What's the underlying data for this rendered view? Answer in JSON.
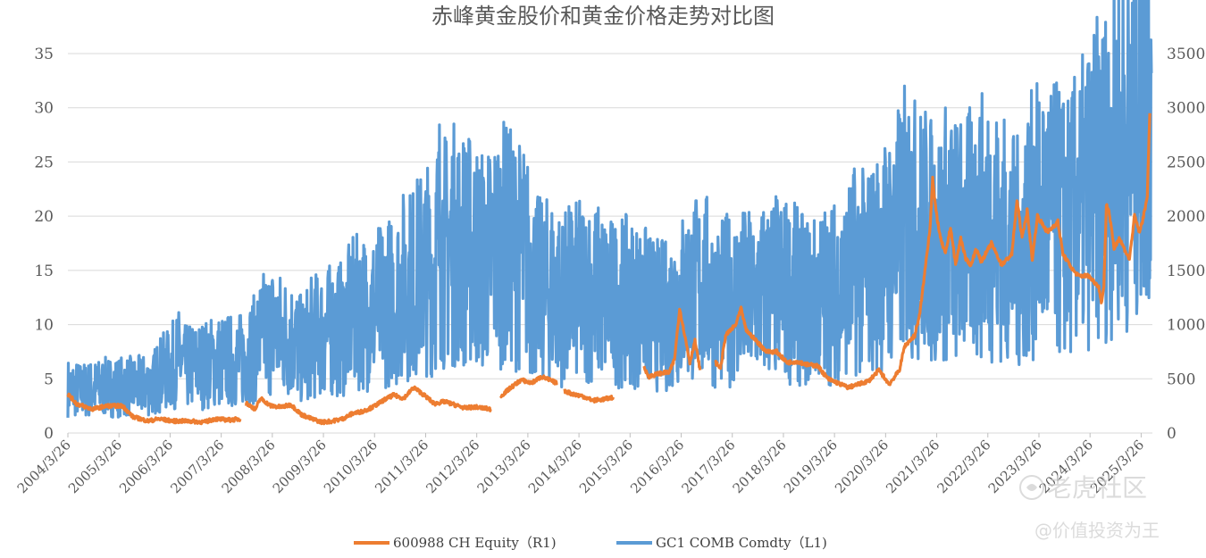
{
  "chart_data": {
    "type": "line",
    "title": "赤峰黄金股价和黄金价格走势对比图",
    "left_axis": {
      "ticks": [
        "0",
        "5",
        "10",
        "15",
        "20",
        "25",
        "30",
        "35"
      ],
      "range": [
        0,
        35
      ]
    },
    "right_axis": {
      "ticks": [
        "0",
        "500",
        "1000",
        "1500",
        "2000",
        "2500",
        "3000",
        "3500"
      ],
      "range": [
        0,
        3500
      ]
    },
    "x_ticks": [
      "2004/3/26",
      "2005/3/26",
      "2006/3/26",
      "2007/3/26",
      "2008/3/26",
      "2009/3/26",
      "2010/3/26",
      "2011/3/26",
      "2012/3/26",
      "2013/3/26",
      "2014/3/26",
      "2015/3/26",
      "2016/3/26",
      "2017/3/26",
      "2018/3/26",
      "2019/3/26",
      "2020/3/26",
      "2021/3/26",
      "2022/3/26",
      "2023/3/26",
      "2024/3/26",
      "2025/3/26"
    ],
    "x_range": [
      2004.23,
      2025.45
    ],
    "grid": true,
    "legend_position": "bottom",
    "series": [
      {
        "name": "600988 CH Equity（R1)",
        "color": "#ED7D31",
        "axis": "left",
        "values": [
          [
            2004.23,
            3.6
          ],
          [
            2004.4,
            2.7
          ],
          [
            2004.7,
            2.2
          ],
          [
            2005.0,
            2.5
          ],
          [
            2005.3,
            2.5
          ],
          [
            2005.5,
            1.5
          ],
          [
            2005.8,
            1.1
          ],
          [
            2006.0,
            1.3
          ],
          [
            2006.3,
            1.1
          ],
          [
            2006.6,
            1.1
          ],
          [
            2006.9,
            1.0
          ],
          [
            2007.1,
            1.3
          ],
          [
            2007.4,
            1.2
          ],
          [
            2007.6,
            1.3
          ],
          null,
          [
            2007.7,
            2.8
          ],
          [
            2007.9,
            2.2
          ],
          [
            2008.0,
            3.2
          ],
          [
            2008.2,
            2.5
          ],
          [
            2008.4,
            2.4
          ],
          [
            2008.6,
            2.6
          ],
          [
            2008.8,
            1.7
          ],
          [
            2009.0,
            1.3
          ],
          [
            2009.2,
            1.0
          ],
          [
            2009.4,
            1.1
          ],
          [
            2009.6,
            1.3
          ],
          [
            2009.8,
            1.8
          ],
          [
            2010.0,
            2.0
          ],
          [
            2010.2,
            2.4
          ],
          [
            2010.4,
            3.0
          ],
          [
            2010.6,
            3.5
          ],
          [
            2010.8,
            3.2
          ],
          [
            2011.0,
            4.2
          ],
          [
            2011.2,
            3.5
          ],
          [
            2011.4,
            2.7
          ],
          [
            2011.6,
            2.9
          ],
          [
            2011.8,
            2.6
          ],
          [
            2012.0,
            2.3
          ],
          [
            2012.2,
            2.4
          ],
          [
            2012.5,
            2.2
          ],
          null,
          [
            2012.7,
            3.4
          ],
          [
            2012.9,
            4.2
          ],
          [
            2013.1,
            4.9
          ],
          [
            2013.3,
            4.6
          ],
          [
            2013.5,
            5.2
          ],
          [
            2013.8,
            4.6
          ],
          null,
          [
            2013.95,
            3.9
          ],
          [
            2014.1,
            3.6
          ],
          [
            2014.3,
            3.4
          ],
          [
            2014.5,
            3.0
          ],
          [
            2014.7,
            3.1
          ],
          [
            2014.9,
            3.3
          ],
          null,
          [
            2015.5,
            6.0
          ],
          [
            2015.6,
            5.2
          ],
          [
            2015.8,
            5.5
          ],
          [
            2016.0,
            5.6
          ],
          [
            2016.1,
            6.8
          ],
          [
            2016.2,
            11.5
          ],
          [
            2016.3,
            9.0
          ],
          [
            2016.4,
            6.5
          ],
          [
            2016.5,
            8.5
          ],
          [
            2016.6,
            5.8
          ],
          null,
          [
            2016.9,
            6.5
          ],
          [
            2017.0,
            6.0
          ],
          [
            2017.1,
            9.0
          ],
          [
            2017.3,
            10.0
          ],
          [
            2017.4,
            11.5
          ],
          [
            2017.5,
            9.5
          ],
          [
            2017.7,
            8.5
          ],
          [
            2017.9,
            7.5
          ],
          [
            2018.1,
            7.5
          ],
          [
            2018.3,
            6.5
          ],
          [
            2018.5,
            6.6
          ],
          [
            2018.7,
            6.3
          ],
          [
            2018.9,
            6.2
          ],
          [
            2019.1,
            5.0
          ],
          [
            2019.3,
            4.6
          ],
          [
            2019.5,
            4.2
          ],
          [
            2019.7,
            4.5
          ],
          [
            2019.9,
            4.8
          ],
          [
            2020.1,
            5.8
          ],
          [
            2020.3,
            4.5
          ],
          [
            2020.5,
            5.8
          ],
          [
            2020.6,
            8.0
          ],
          [
            2020.8,
            9.0
          ],
          [
            2020.9,
            11.0
          ],
          [
            2021.0,
            15.0
          ],
          [
            2021.1,
            19.0
          ],
          [
            2021.15,
            23.5
          ],
          [
            2021.2,
            21.0
          ],
          [
            2021.3,
            18.0
          ],
          [
            2021.4,
            16.5
          ],
          [
            2021.5,
            19.0
          ],
          [
            2021.6,
            15.5
          ],
          [
            2021.7,
            18.0
          ],
          [
            2021.8,
            16.0
          ],
          [
            2021.9,
            15.5
          ],
          [
            2022.0,
            17.0
          ],
          [
            2022.1,
            15.8
          ],
          [
            2022.3,
            17.5
          ],
          [
            2022.5,
            15.5
          ],
          [
            2022.7,
            16.5
          ],
          [
            2022.8,
            21.5
          ],
          [
            2022.9,
            18.0
          ],
          [
            2023.0,
            20.5
          ],
          [
            2023.1,
            16.0
          ],
          [
            2023.2,
            20.0
          ],
          [
            2023.4,
            18.5
          ],
          [
            2023.6,
            19.5
          ],
          [
            2023.7,
            16.5
          ],
          [
            2023.9,
            15.0
          ],
          [
            2024.0,
            14.5
          ],
          [
            2024.2,
            14.5
          ],
          [
            2024.4,
            13.5
          ],
          [
            2024.45,
            12.0
          ],
          [
            2024.5,
            13.5
          ],
          [
            2024.55,
            21.0
          ],
          [
            2024.6,
            20.5
          ],
          [
            2024.7,
            17.0
          ],
          [
            2024.8,
            18.0
          ],
          [
            2024.9,
            17.0
          ],
          [
            2025.0,
            16.0
          ],
          [
            2025.1,
            20.0
          ],
          [
            2025.2,
            18.5
          ],
          [
            2025.3,
            20.5
          ],
          [
            2025.35,
            22.0
          ],
          [
            2025.4,
            29.5
          ]
        ]
      },
      {
        "name": "GC1 COMB Comdty（L1)",
        "color": "#5B9BD5",
        "axis": "right",
        "values": [
          [
            2004.23,
            415
          ],
          [
            2004.5,
            395
          ],
          [
            2004.8,
            410
          ],
          [
            2005.0,
            425
          ],
          [
            2005.3,
            428
          ],
          [
            2005.6,
            432
          ],
          [
            2005.9,
            450
          ],
          [
            2006.0,
            540
          ],
          [
            2006.2,
            580
          ],
          [
            2006.4,
            690
          ],
          [
            2006.5,
            600
          ],
          [
            2006.7,
            620
          ],
          [
            2006.9,
            630
          ],
          [
            2007.1,
            660
          ],
          [
            2007.3,
            665
          ],
          [
            2007.6,
            670
          ],
          [
            2007.9,
            780
          ],
          [
            2008.0,
            880
          ],
          [
            2008.2,
            960
          ],
          [
            2008.4,
            900
          ],
          [
            2008.6,
            880
          ],
          [
            2008.8,
            760
          ],
          [
            2009.0,
            880
          ],
          [
            2009.2,
            920
          ],
          [
            2009.4,
            950
          ],
          [
            2009.6,
            960
          ],
          [
            2009.8,
            1100
          ],
          [
            2010.0,
            1120
          ],
          [
            2010.2,
            1130
          ],
          [
            2010.4,
            1190
          ],
          [
            2010.6,
            1240
          ],
          [
            2010.8,
            1360
          ],
          [
            2011.0,
            1400
          ],
          [
            2011.2,
            1520
          ],
          [
            2011.4,
            1520
          ],
          [
            2011.5,
            1850
          ],
          [
            2011.6,
            1680
          ],
          [
            2011.8,
            1750
          ],
          [
            2012.0,
            1700
          ],
          [
            2012.2,
            1650
          ],
          [
            2012.4,
            1580
          ],
          [
            2012.6,
            1700
          ],
          [
            2012.8,
            1760
          ],
          [
            2012.9,
            1700
          ],
          [
            2013.0,
            1670
          ],
          [
            2013.2,
            1600
          ],
          [
            2013.3,
            1400
          ],
          [
            2013.5,
            1300
          ],
          [
            2013.7,
            1340
          ],
          [
            2013.9,
            1230
          ],
          [
            2014.1,
            1300
          ],
          [
            2014.3,
            1300
          ],
          [
            2014.5,
            1320
          ],
          [
            2014.7,
            1260
          ],
          [
            2014.9,
            1200
          ],
          [
            2015.1,
            1220
          ],
          [
            2015.3,
            1200
          ],
          [
            2015.5,
            1170
          ],
          [
            2015.7,
            1100
          ],
          [
            2015.9,
            1080
          ],
          [
            2016.0,
            1090
          ],
          [
            2016.1,
            1220
          ],
          [
            2016.3,
            1260
          ],
          [
            2016.5,
            1330
          ],
          [
            2016.7,
            1360
          ],
          [
            2016.9,
            1180
          ],
          [
            2017.0,
            1190
          ],
          [
            2017.2,
            1250
          ],
          [
            2017.4,
            1270
          ],
          [
            2017.6,
            1240
          ],
          [
            2017.8,
            1280
          ],
          [
            2018.0,
            1340
          ],
          [
            2018.2,
            1330
          ],
          [
            2018.4,
            1300
          ],
          [
            2018.6,
            1230
          ],
          [
            2018.8,
            1200
          ],
          [
            2019.0,
            1280
          ],
          [
            2019.2,
            1300
          ],
          [
            2019.4,
            1350
          ],
          [
            2019.6,
            1500
          ],
          [
            2019.8,
            1480
          ],
          [
            2020.0,
            1550
          ],
          [
            2020.2,
            1650
          ],
          [
            2020.4,
            1750
          ],
          [
            2020.6,
            1950
          ],
          [
            2020.7,
            2000
          ],
          [
            2020.8,
            1880
          ],
          [
            2021.0,
            1850
          ],
          [
            2021.2,
            1730
          ],
          [
            2021.4,
            1850
          ],
          [
            2021.6,
            1780
          ],
          [
            2021.8,
            1800
          ],
          [
            2022.0,
            1850
          ],
          [
            2022.2,
            1950
          ],
          [
            2022.4,
            1850
          ],
          [
            2022.6,
            1750
          ],
          [
            2022.8,
            1650
          ],
          [
            2022.9,
            1750
          ],
          [
            2023.0,
            1880
          ],
          [
            2023.2,
            1950
          ],
          [
            2023.4,
            2000
          ],
          [
            2023.6,
            1950
          ],
          [
            2023.8,
            1900
          ],
          [
            2024.0,
            2050
          ],
          [
            2024.2,
            2200
          ],
          [
            2024.4,
            2350
          ],
          [
            2024.6,
            2450
          ],
          [
            2024.8,
            2700
          ],
          [
            2025.0,
            2650
          ],
          [
            2025.2,
            2900
          ],
          [
            2025.35,
            3100
          ],
          [
            2025.43,
            3320
          ]
        ]
      }
    ]
  },
  "watermark": {
    "brand": "老虎社区",
    "author": "@价值投资为王",
    "icon": "tiger-logo-icon"
  }
}
